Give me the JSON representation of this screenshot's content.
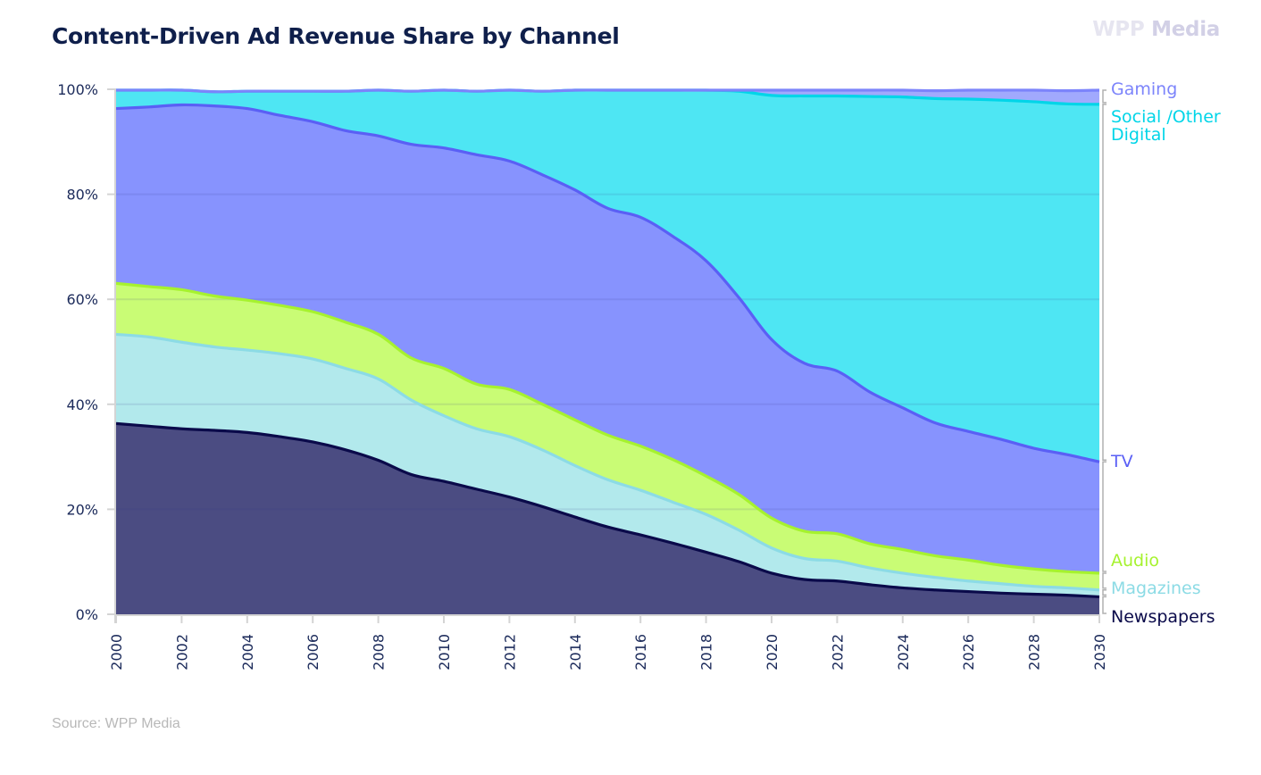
{
  "header": {
    "title": "Content-Driven Ad Revenue Share by Channel",
    "brand_prefix": "WPP",
    "brand_suffix": "Media"
  },
  "footer": {
    "source": "Source: WPP Media"
  },
  "chart_data": {
    "type": "area",
    "stacked": true,
    "title": "Content-Driven Ad Revenue Share by Channel",
    "xlabel": "",
    "ylabel": "",
    "xlim": [
      2000,
      2030
    ],
    "ylim": [
      0,
      100
    ],
    "grid": true,
    "legend": "right-end-labels",
    "y_ticks": [
      0,
      20,
      40,
      60,
      80,
      100
    ],
    "y_tick_labels": [
      "0%",
      "20%",
      "40%",
      "60%",
      "80%",
      "100%"
    ],
    "x_ticks": [
      2000,
      2002,
      2004,
      2006,
      2008,
      2010,
      2012,
      2014,
      2016,
      2018,
      2020,
      2022,
      2024,
      2026,
      2028,
      2030
    ],
    "x_tick_labels": [
      "2000",
      "2002",
      "2004",
      "2006",
      "2008",
      "2010",
      "2012",
      "2014",
      "2016",
      "2018",
      "2020",
      "2022",
      "2024",
      "2026",
      "2028",
      "2030"
    ],
    "x": [
      2000,
      2001,
      2002,
      2003,
      2004,
      2005,
      2006,
      2007,
      2008,
      2009,
      2010,
      2011,
      2012,
      2013,
      2014,
      2015,
      2016,
      2017,
      2018,
      2019,
      2020,
      2021,
      2022,
      2023,
      2024,
      2025,
      2026,
      2027,
      2028,
      2029,
      2030
    ],
    "series": [
      {
        "name": "Newspapers",
        "label": "Newspapers",
        "fill": "#4b4c82",
        "line": "#0a0a4a",
        "label_color": "#0a0a4a",
        "values": [
          36.5,
          36.0,
          35.5,
          35.2,
          34.8,
          34.0,
          33.0,
          31.5,
          29.5,
          26.8,
          25.5,
          24.0,
          22.5,
          20.7,
          18.7,
          16.8,
          15.3,
          13.7,
          12.0,
          10.2,
          8.0,
          6.8,
          6.5,
          5.8,
          5.2,
          4.8,
          4.5,
          4.2,
          4.0,
          3.8,
          3.5
        ]
      },
      {
        "name": "Magazines",
        "label": "Magazines",
        "fill": "#b2e9ec",
        "line": "#8cdbe5",
        "label_color": "#8cdbe5",
        "values": [
          17.0,
          17.0,
          16.5,
          15.9,
          15.7,
          15.8,
          15.8,
          15.5,
          15.5,
          14.2,
          12.5,
          11.5,
          11.5,
          10.8,
          9.8,
          9.0,
          8.5,
          7.8,
          7.2,
          6.0,
          4.8,
          4.0,
          3.8,
          3.2,
          2.8,
          2.4,
          2.0,
          1.8,
          1.5,
          1.4,
          1.3
        ]
      },
      {
        "name": "Audio",
        "label": "Audio",
        "fill": "#c9fc75",
        "line": "#a6f22e",
        "label_color": "#a6f22e",
        "values": [
          9.7,
          9.6,
          10.0,
          9.7,
          9.5,
          9.2,
          9.0,
          8.8,
          8.5,
          8.0,
          9.0,
          8.5,
          9.0,
          8.7,
          8.7,
          8.5,
          8.4,
          8.1,
          7.3,
          6.8,
          5.7,
          5.2,
          5.2,
          4.6,
          4.5,
          4.1,
          4.0,
          3.5,
          3.3,
          3.1,
          3.2
        ]
      },
      {
        "name": "TV",
        "label": "TV",
        "fill": "#8793fe",
        "line": "#5a5ff5",
        "label_color": "#5a5ff5",
        "values": [
          33.3,
          34.2,
          35.2,
          36.2,
          36.5,
          36.2,
          36.2,
          36.5,
          37.8,
          40.7,
          42.0,
          43.7,
          43.5,
          43.7,
          43.8,
          43.2,
          43.6,
          42.5,
          41.0,
          37.5,
          34.0,
          32.0,
          31.0,
          28.9,
          27.0,
          25.3,
          24.5,
          24.0,
          23.0,
          22.3,
          21.2
        ]
      },
      {
        "name": "Social /Other Digital",
        "label": "Social /Other Digital",
        "fill": "#4ee6f3",
        "line": "#00d5e8",
        "label_color": "#00d5e8",
        "values": [
          3.5,
          3.2,
          2.8,
          2.7,
          3.3,
          4.6,
          5.8,
          7.5,
          8.7,
          10.1,
          11.0,
          12.1,
          13.5,
          15.9,
          19.0,
          22.5,
          24.2,
          29.0,
          32.5,
          39.3,
          46.5,
          50.9,
          52.4,
          56.3,
          59.2,
          61.8,
          63.3,
          64.6,
          66.0,
          66.8,
          68.1
        ]
      },
      {
        "name": "Gaming",
        "label": "Gaming",
        "fill": "#a1a9fd",
        "line": "#7c84fb",
        "label_color": "#7c84fb",
        "values": [
          0.0,
          0.0,
          0.0,
          0.0,
          0.0,
          0.0,
          0.0,
          0.0,
          0.0,
          0.0,
          0.0,
          0.0,
          0.0,
          0.0,
          0.0,
          0.0,
          0.0,
          0.0,
          0.0,
          0.2,
          1.0,
          1.1,
          1.1,
          1.2,
          1.3,
          1.5,
          1.7,
          1.9,
          2.2,
          2.5,
          2.7
        ]
      }
    ]
  }
}
